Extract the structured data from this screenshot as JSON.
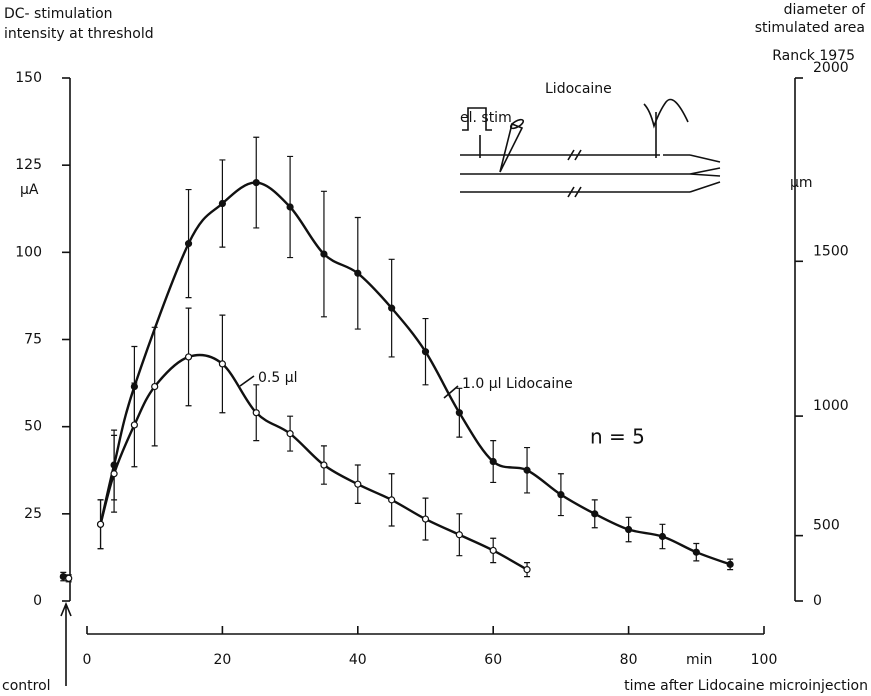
{
  "chart_data": {
    "type": "line",
    "left_title": [
      "DC- stimulation",
      "intensity at threshold"
    ],
    "right_title": [
      "diameter of",
      "stimulated area",
      "Ranck 1975"
    ],
    "y_unit": "µA",
    "y2_unit": "µm",
    "x_unit": "min",
    "x_label": "time after Lidocaine microinjection",
    "control_label": "control",
    "annotation": "n = 5",
    "inset_labels": [
      "el. stim",
      "Lidocaine"
    ],
    "xlim": [
      0,
      100
    ],
    "xticks": [
      0,
      20,
      40,
      60,
      80,
      100
    ],
    "ylim": [
      0,
      150
    ],
    "yticks": [
      0,
      25,
      50,
      75,
      100,
      125,
      150
    ],
    "y2lim": [
      0,
      2000
    ],
    "y2ticks": [
      0,
      500,
      1000,
      1500,
      2000
    ],
    "y2scale": "pow",
    "y2exponent": 1.5,
    "series": [
      {
        "name": "1.0 µl Lidocaine",
        "color": "#111111",
        "marker": "filled",
        "x": [
          2,
          4,
          7,
          15,
          20,
          25,
          30,
          35,
          40,
          45,
          50,
          55,
          60,
          65,
          70,
          75,
          80,
          85,
          90,
          95
        ],
        "values": [
          22,
          39,
          61.5,
          102.5,
          114,
          120,
          113,
          99.5,
          94,
          84,
          71.5,
          54,
          40,
          37.5,
          30.5,
          25,
          20.5,
          18.5,
          14,
          10.5
        ],
        "errors": [
          7,
          10,
          11.5,
          15.5,
          12.5,
          13,
          14.5,
          18,
          16,
          14,
          9.5,
          7,
          6,
          6.5,
          6,
          4,
          3.5,
          3.5,
          2.5,
          1.5
        ],
        "control": {
          "x": -3.5,
          "value": 7,
          "error": 1.2
        }
      },
      {
        "name": "0.5 µl",
        "color": "#111111",
        "marker": "open",
        "x": [
          2,
          4,
          7,
          10,
          15,
          20,
          25,
          30,
          35,
          40,
          45,
          50,
          55,
          60,
          65
        ],
        "values": [
          22,
          36.5,
          50.5,
          61.5,
          70,
          68,
          54,
          48,
          39,
          33.5,
          29,
          23.5,
          19,
          14.5,
          9
        ],
        "errors": [
          7,
          11,
          12,
          17,
          14,
          14,
          8,
          5,
          5.5,
          5.5,
          7.5,
          6,
          6,
          3.5,
          2
        ],
        "control": {
          "x": -2.7,
          "value": 6.5,
          "error": 1
        }
      }
    ]
  }
}
